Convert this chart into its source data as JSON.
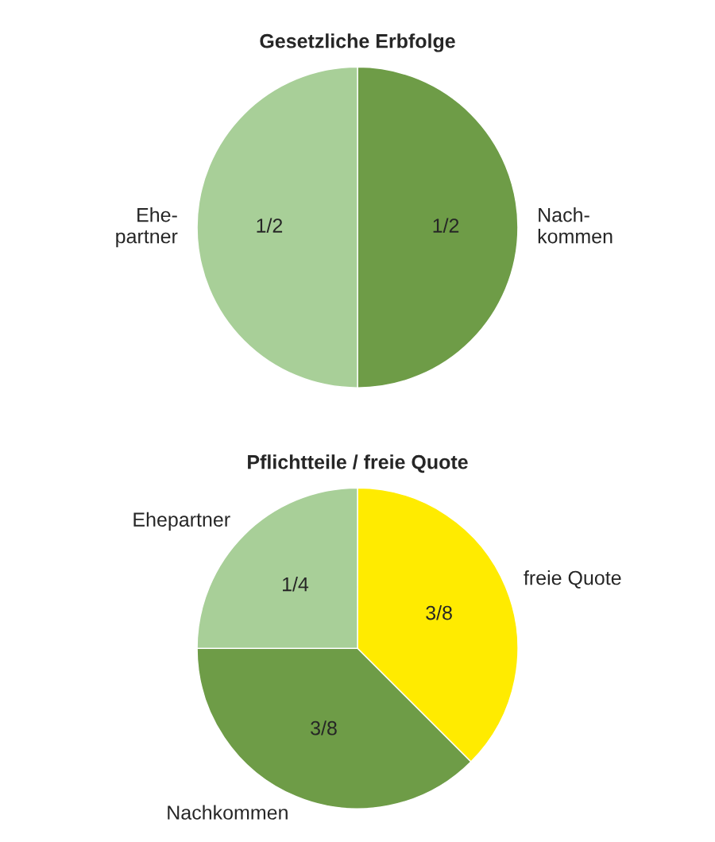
{
  "chart_data": [
    {
      "type": "pie",
      "title": "Gesetzliche Erbfolge",
      "categories": [
        "Nach-\nkommen",
        "Ehe-\npartner"
      ],
      "values": [
        0.5,
        0.5
      ],
      "value_labels": [
        "1/2",
        "1/2"
      ],
      "colors": [
        "#6e9c47",
        "#a8cf98"
      ]
    },
    {
      "type": "pie",
      "title": "Pflichtteile / freie Quote",
      "categories": [
        "freie Quote",
        "Nachkommen",
        "Ehepartner"
      ],
      "values": [
        0.375,
        0.375,
        0.25
      ],
      "value_labels": [
        "3/8",
        "3/8",
        "1/4"
      ],
      "colors": [
        "#ffeb00",
        "#6e9c47",
        "#a8cf98"
      ]
    }
  ]
}
